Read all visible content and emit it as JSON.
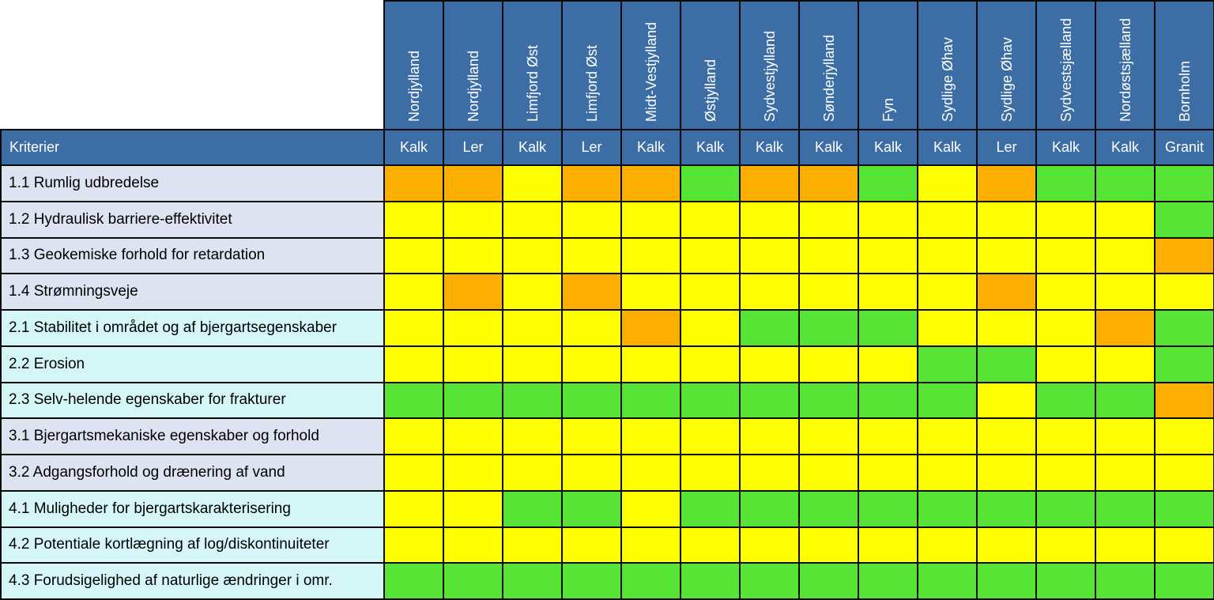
{
  "header": {
    "corner_label": "Kriterier"
  },
  "colors": {
    "header_blue": "#3c6ea5",
    "grid_line": "#0a0a0a",
    "label_lavender": "#dee3f2",
    "label_cyan": "#d4f6f6",
    "green": "#57e436",
    "yellow": "#ffff00",
    "orange": "#fcaf00",
    "header_text": "#ffffff",
    "label_text": "#000000"
  },
  "chart_data": {
    "type": "heatmap",
    "title": "Kriterier",
    "legend_position": "none",
    "grid": true,
    "columns": [
      {
        "region": "Nordjylland",
        "material": "Kalk"
      },
      {
        "region": "Nordjylland",
        "material": "Ler"
      },
      {
        "region": "Limfjord Øst",
        "material": "Kalk"
      },
      {
        "region": "Limfjord Øst",
        "material": "Ler"
      },
      {
        "region": "Midt-Vestjylland",
        "material": "Kalk"
      },
      {
        "region": "Østjylland",
        "material": "Kalk"
      },
      {
        "region": "Sydvestjylland",
        "material": "Kalk"
      },
      {
        "region": "Sønderjylland",
        "material": "Kalk"
      },
      {
        "region": "Fyn",
        "material": "Kalk"
      },
      {
        "region": "Sydlige Øhav",
        "material": "Kalk"
      },
      {
        "region": "Sydlige Øhav",
        "material": "Ler"
      },
      {
        "region": "Sydvestsjælland",
        "material": "Kalk"
      },
      {
        "region": "Nordøstsjælland",
        "material": "Kalk"
      },
      {
        "region": "Bornholm",
        "material": "Granit"
      }
    ],
    "rows": [
      {
        "label": "1.1 Rumlig udbredelse",
        "label_bg": "lavender",
        "cells": [
          "orange",
          "orange",
          "yellow",
          "orange",
          "orange",
          "green",
          "orange",
          "orange",
          "green",
          "yellow",
          "orange",
          "green",
          "green",
          "green"
        ]
      },
      {
        "label": "1.2 Hydraulisk barriere-effektivitet",
        "label_bg": "lavender",
        "cells": [
          "yellow",
          "yellow",
          "yellow",
          "yellow",
          "yellow",
          "yellow",
          "yellow",
          "yellow",
          "yellow",
          "yellow",
          "yellow",
          "yellow",
          "yellow",
          "green"
        ]
      },
      {
        "label": "1.3 Geokemiske forhold for retardation",
        "label_bg": "lavender",
        "cells": [
          "yellow",
          "yellow",
          "yellow",
          "yellow",
          "yellow",
          "yellow",
          "yellow",
          "yellow",
          "yellow",
          "yellow",
          "yellow",
          "yellow",
          "yellow",
          "orange"
        ]
      },
      {
        "label": "1.4 Strømningsveje",
        "label_bg": "lavender",
        "cells": [
          "yellow",
          "orange",
          "yellow",
          "orange",
          "yellow",
          "yellow",
          "yellow",
          "yellow",
          "yellow",
          "yellow",
          "orange",
          "yellow",
          "yellow",
          "yellow"
        ]
      },
      {
        "label": "2.1 Stabilitet i området og af bjergartsegenskaber",
        "label_bg": "cyan",
        "cells": [
          "yellow",
          "yellow",
          "yellow",
          "yellow",
          "orange",
          "yellow",
          "green",
          "green",
          "green",
          "yellow",
          "yellow",
          "yellow",
          "orange",
          "green"
        ]
      },
      {
        "label": "2.2 Erosion",
        "label_bg": "cyan",
        "cells": [
          "yellow",
          "yellow",
          "yellow",
          "yellow",
          "yellow",
          "yellow",
          "yellow",
          "yellow",
          "yellow",
          "green",
          "green",
          "yellow",
          "yellow",
          "green"
        ]
      },
      {
        "label": "2.3 Selv-helende egenskaber for frakturer",
        "label_bg": "cyan",
        "cells": [
          "green",
          "green",
          "green",
          "green",
          "green",
          "green",
          "green",
          "green",
          "green",
          "green",
          "yellow",
          "green",
          "green",
          "orange"
        ]
      },
      {
        "label": "3.1 Bjergartsmekaniske egenskaber og forhold",
        "label_bg": "lavender",
        "cells": [
          "yellow",
          "yellow",
          "yellow",
          "yellow",
          "yellow",
          "yellow",
          "yellow",
          "yellow",
          "yellow",
          "yellow",
          "yellow",
          "yellow",
          "yellow",
          "yellow"
        ]
      },
      {
        "label": "3.2 Adgangsforhold og drænering af vand",
        "label_bg": "lavender",
        "cells": [
          "yellow",
          "yellow",
          "yellow",
          "yellow",
          "yellow",
          "yellow",
          "yellow",
          "yellow",
          "yellow",
          "yellow",
          "yellow",
          "yellow",
          "yellow",
          "yellow"
        ]
      },
      {
        "label": "4.1 Muligheder for bjergartskarakterisering",
        "label_bg": "cyan",
        "cells": [
          "yellow",
          "yellow",
          "green",
          "green",
          "yellow",
          "green",
          "green",
          "green",
          "green",
          "green",
          "green",
          "green",
          "green",
          "green"
        ]
      },
      {
        "label": "4.2 Potentiale kortlægning af log/diskontinuiteter",
        "label_bg": "cyan",
        "cells": [
          "yellow",
          "yellow",
          "yellow",
          "yellow",
          "yellow",
          "yellow",
          "yellow",
          "yellow",
          "yellow",
          "yellow",
          "yellow",
          "yellow",
          "yellow",
          "yellow"
        ]
      },
      {
        "label": "4.3 Forudsigelighed af naturlige ændringer i omr.",
        "label_bg": "cyan",
        "cells": [
          "green",
          "green",
          "green",
          "green",
          "green",
          "green",
          "green",
          "green",
          "green",
          "green",
          "green",
          "green",
          "green",
          "green"
        ]
      }
    ]
  }
}
